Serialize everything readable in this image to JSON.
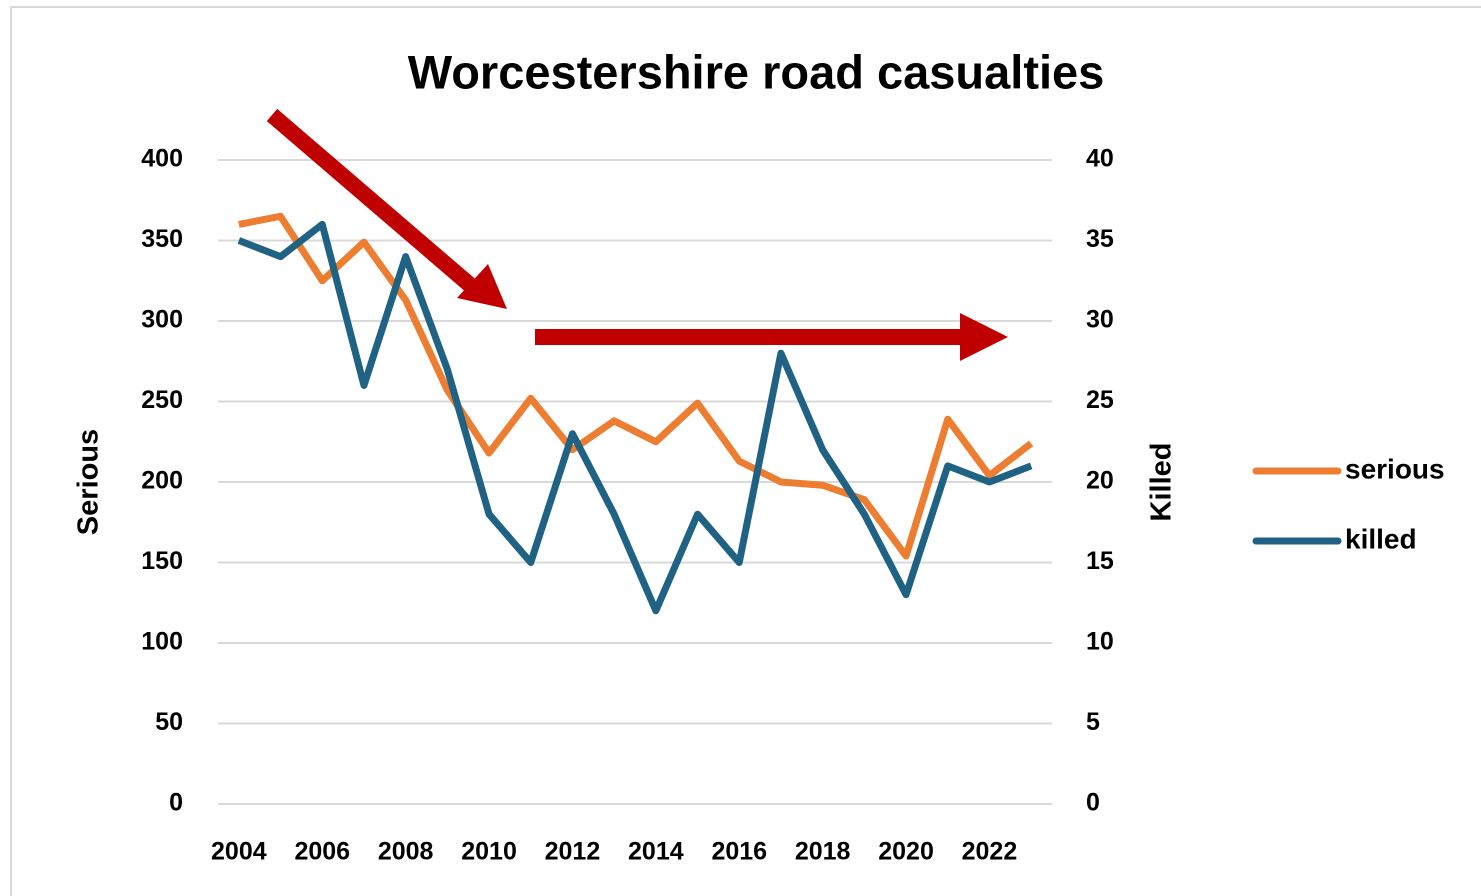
{
  "chart_data": {
    "type": "line",
    "title": "Worcestershire road casualties",
    "y_label": "Serious",
    "y2_label": "Killed",
    "categories": [
      "2004",
      null,
      "2006",
      null,
      "2008",
      null,
      "2010",
      null,
      "2012",
      null,
      "2014",
      null,
      "2016",
      null,
      "2018",
      null,
      "2020",
      null,
      "2022",
      null
    ],
    "series": [
      {
        "name": "serious",
        "color": "#ed7d31",
        "values": [
          360,
          365,
          325,
          349,
          313,
          257,
          218,
          252,
          220,
          238,
          225,
          249,
          213,
          200,
          198,
          189,
          154,
          239,
          204,
          224
        ]
      },
      {
        "name": "killed",
        "color": "#1f6283",
        "axis": "y2",
        "values": [
          35,
          34,
          36,
          26,
          34,
          27,
          18,
          15,
          23,
          18,
          12,
          18,
          15,
          28,
          22,
          18,
          13,
          21,
          20,
          21
        ]
      }
    ],
    "ylim": [
      0,
      400
    ],
    "yticks": [
      0,
      50,
      100,
      150,
      200,
      250,
      300,
      350,
      400
    ],
    "y2lim": [
      0,
      40
    ],
    "y2ticks": [
      0,
      5,
      10,
      15,
      20,
      25,
      30,
      35,
      40
    ],
    "grid": true,
    "legend": "right"
  }
}
